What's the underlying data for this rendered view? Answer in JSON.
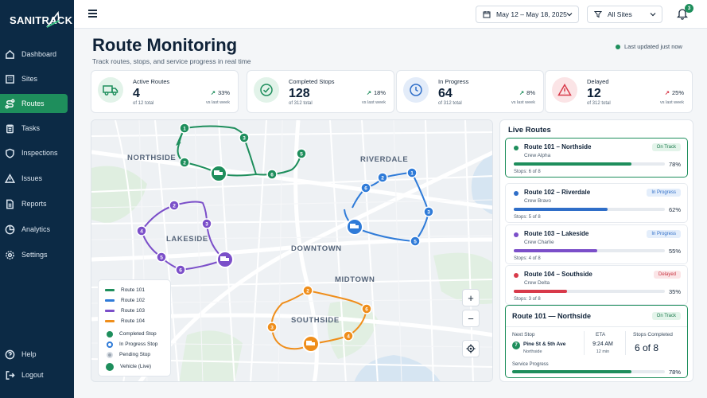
{
  "app": {
    "name": "SANITRACK"
  },
  "sidebar": {
    "items": [
      {
        "label": "Dashboard",
        "icon": "home-icon"
      },
      {
        "label": "Sites",
        "icon": "building-icon"
      },
      {
        "label": "Routes",
        "icon": "route-icon",
        "active": true
      },
      {
        "label": "Tasks",
        "icon": "clipboard-icon"
      },
      {
        "label": "Inspections",
        "icon": "shield-icon"
      },
      {
        "label": "Issues",
        "icon": "warning-icon"
      },
      {
        "label": "Reports",
        "icon": "document-icon"
      },
      {
        "label": "Analytics",
        "icon": "chart-icon"
      },
      {
        "label": "Settings",
        "icon": "gear-icon"
      }
    ],
    "bottom": [
      {
        "label": "Help",
        "icon": "help-icon"
      },
      {
        "label": "Logout",
        "icon": "logout-icon"
      }
    ]
  },
  "topbar": {
    "date_range": "May 12 – May 18, 2025",
    "site_filter": "All Sites",
    "notifications": "3"
  },
  "header": {
    "title": "Route Monitoring",
    "subtitle": "Track routes, stops, and service progress in real time",
    "updated": "Last updated just now"
  },
  "stats": [
    {
      "label": "Active Routes",
      "value": "4",
      "total": "of 12 total",
      "trend": "33%",
      "vs": "vs last week",
      "color": "#1e8e5c"
    },
    {
      "label": "Completed Stops",
      "value": "128",
      "total": "of 312 total",
      "trend": "18%",
      "vs": "vs last week",
      "color": "#1e8e5c"
    },
    {
      "label": "In Progress",
      "value": "64",
      "total": "of 312 total",
      "trend": "8%",
      "vs": "vs last week",
      "color": "#2f6ec8"
    },
    {
      "label": "Delayed",
      "value": "12",
      "total": "of 312 total",
      "trend": "25%",
      "vs": "vs last week",
      "color": "#d83a4a"
    }
  ],
  "map": {
    "areas": [
      "NORTHSIDE",
      "RIVERDALE",
      "LAKESIDE",
      "DOWNTOWN",
      "MIDTOWN",
      "SOUTHSIDE"
    ],
    "legend": {
      "routes": [
        {
          "label": "Route 101",
          "color": "#1e8e5c"
        },
        {
          "label": "Route 102",
          "color": "#2f7bd8"
        },
        {
          "label": "Route 103",
          "color": "#7b4fc9"
        },
        {
          "label": "Route 104",
          "color": "#ef8e1b"
        }
      ],
      "stops": [
        {
          "label": "Completed Stop"
        },
        {
          "label": "In Progress Stop"
        },
        {
          "label": "Pending Stop"
        },
        {
          "label": "Vehicle (Live)"
        }
      ]
    },
    "zoom_in": "+",
    "zoom_out": "−"
  },
  "live_routes": {
    "title": "Live Routes",
    "routes": [
      {
        "name": "Route 101 – Northside",
        "crew": "Crew Alpha",
        "status": "On Track",
        "progress": 0.78,
        "pct": "78%",
        "stops": "Stops: 6 of 8",
        "color": "#1e8e5c",
        "badge_bg": "#e3f4ea",
        "badge_fg": "#1e7a4e"
      },
      {
        "name": "Route 102 – Riverdale",
        "crew": "Crew Bravo",
        "status": "In Progress",
        "progress": 0.62,
        "pct": "62%",
        "stops": "Stops: 5 of 8",
        "color": "#2f6ec8",
        "badge_bg": "#e4eefb",
        "badge_fg": "#2f6ec8"
      },
      {
        "name": "Route 103 – Lakeside",
        "crew": "Crew Charlie",
        "status": "In Progress",
        "progress": 0.55,
        "pct": "55%",
        "stops": "Stops: 4 of 8",
        "color": "#7b4fc9",
        "badge_bg": "#e4eefb",
        "badge_fg": "#2f6ec8"
      },
      {
        "name": "Route 104 – Southside",
        "crew": "Crew Delta",
        "status": "Delayed",
        "progress": 0.35,
        "pct": "35%",
        "stops": "Stops: 3 of 8",
        "color": "#d83a4a",
        "badge_bg": "#fbe5e7",
        "badge_fg": "#c8323f"
      }
    ],
    "detail": {
      "name": "Route 101 — Northside",
      "status": "On Track",
      "next_stop_label": "Next Stop",
      "stop_number": "7",
      "address": "Pine St & 5th Ave",
      "area": "Northside",
      "eta_label": "ETA",
      "eta": "9:24 AM",
      "eta_sub": "12 min",
      "stops_completed_label": "Stops Completed",
      "stops_completed": "6 of 8",
      "service_progress_label": "Service Progress",
      "progress": 0.78,
      "pct": "78%"
    }
  }
}
